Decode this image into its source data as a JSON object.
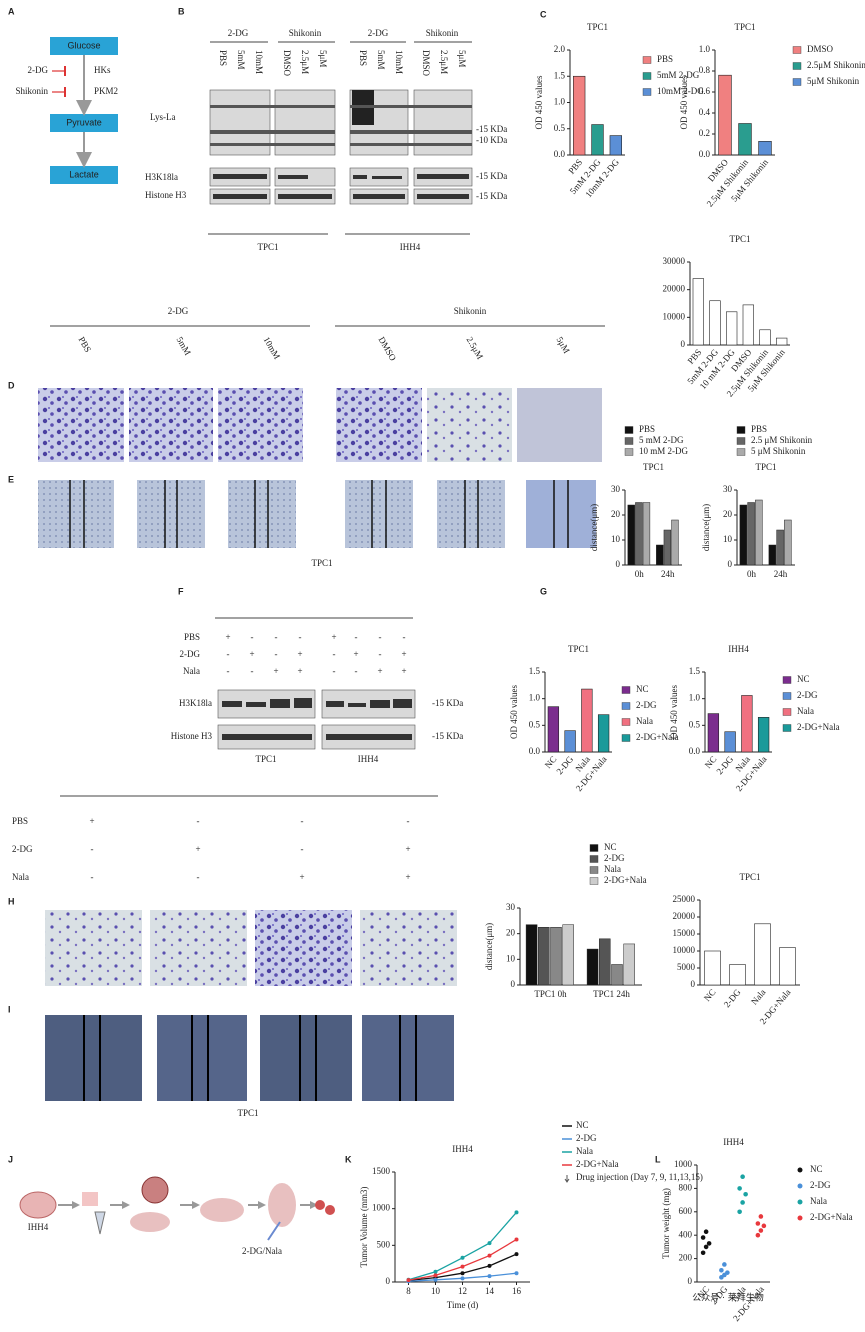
{
  "panel_letters": [
    "A",
    "B",
    "C",
    "D",
    "E",
    "F",
    "G",
    "H",
    "I",
    "J",
    "K",
    "L"
  ],
  "pathway": {
    "nodes": [
      "Glucose",
      "Pyruvate",
      "Lactate"
    ],
    "inhibitors": [
      "2-DG",
      "Shikonin"
    ],
    "enzymes": [
      "HKs",
      "PKM2"
    ]
  },
  "blot_b": {
    "groups": [
      "2-DG",
      "Shikonin"
    ],
    "lanes": [
      "PBS",
      "5mM",
      "10mM",
      "DMSO",
      "2.5μM",
      "5μM"
    ],
    "rows": [
      "Lys-La",
      "H3K18la",
      "Histone H3"
    ],
    "sizes": [
      "-15 KDa",
      "-10 KDa",
      "-15 KDa",
      "-15 KDa"
    ],
    "cells": [
      "TPC1",
      "IHH4"
    ]
  },
  "panel_d": {
    "groups": [
      "2-DG",
      "Shikonin"
    ],
    "lanes": [
      "PBS",
      "5mM",
      "10mM",
      "DMSO",
      "2.5μM",
      "5μM"
    ],
    "caption": "TPC1"
  },
  "blot_f": {
    "rows": [
      "PBS",
      "2-DG",
      "Nala"
    ],
    "signs": [
      [
        "+",
        "-",
        "-",
        "-",
        "+",
        "-",
        "-",
        "-"
      ],
      [
        "-",
        "+",
        "-",
        "+",
        "-",
        "+",
        "-",
        "+"
      ],
      [
        "-",
        "-",
        "+",
        "+",
        "-",
        "-",
        "+",
        "+"
      ]
    ],
    "bands": [
      "H3K18la",
      "Histone H3"
    ],
    "sizes": [
      "-15 KDa",
      "-15 KDa"
    ],
    "cells": [
      "TPC1",
      "IHH4"
    ]
  },
  "panel_h": {
    "rows": [
      "PBS",
      "2-DG",
      "Nala"
    ],
    "signs": [
      [
        "+",
        "-",
        "-",
        "-"
      ],
      [
        "-",
        "+",
        "-",
        "+"
      ],
      [
        "-",
        "-",
        "+",
        "+"
      ]
    ],
    "caption": "TPC1"
  },
  "panel_j": {
    "labels": [
      "IHH4",
      "2-DG/Nala"
    ]
  },
  "watermark": "公众号 · 莱拜生物",
  "charts": [
    {
      "type": "bar",
      "title": "TPC1",
      "ylabel": "OD 450 values",
      "categories": [
        "PBS",
        "5mM 2-DG",
        "10mM 2-DG"
      ],
      "values": [
        1.5,
        0.58,
        0.37
      ],
      "colors": [
        "#f08080",
        "#2a9d8f",
        "#5b8fd6"
      ],
      "ylim": [
        0,
        2
      ],
      "yticks": [
        {
          "value": 0,
          "label": "0.0"
        },
        0.5,
        {
          "value": 1,
          "label": "1.0"
        },
        1.5,
        {
          "value": 2,
          "label": "2.0"
        }
      ],
      "legend": "right"
    },
    {
      "type": "bar",
      "title": "TPC1",
      "ylabel": "OD 450 values",
      "categories": [
        "DMSO",
        "2.5μM Shikonin",
        "5μM Shikonin"
      ],
      "values": [
        0.76,
        0.3,
        0.13
      ],
      "colors": [
        "#f08080",
        "#2a9d8f",
        "#5b8fd6"
      ],
      "ylim": [
        0,
        1
      ],
      "yticks": [
        {
          "value": 0,
          "label": "0.0"
        },
        0.2,
        0.4,
        0.6,
        0.8,
        {
          "value": 1,
          "label": "1.0"
        }
      ],
      "legend": "right"
    },
    {
      "type": "bar",
      "title": "TPC1",
      "categories": [
        "PBS",
        "5mM 2-DG",
        "10 mM 2-DG",
        "DMSO",
        "2.5μM Shikonin",
        "5μM Shikonin"
      ],
      "values": [
        24000,
        16000,
        12000,
        14500,
        5500,
        2500
      ],
      "colors": [
        "#ffffff",
        "#ffffff",
        "#ffffff",
        "#ffffff",
        "#ffffff",
        "#ffffff"
      ],
      "ylim": [
        0,
        30000
      ],
      "yticks": [
        0,
        10000,
        20000,
        30000
      ]
    },
    {
      "type": "grouped_bar",
      "title": "TPC1",
      "ylabel": "distance(μm)",
      "categories": [
        "0h",
        "24h"
      ],
      "series": [
        {
          "name": "PBS",
          "color": "#111111",
          "values": [
            24,
            8
          ]
        },
        {
          "name": "5 mM 2-DG",
          "color": "#666666",
          "values": [
            25,
            14
          ]
        },
        {
          "name": "10 mM 2-DG",
          "color": "#aaaaaa",
          "values": [
            25,
            18
          ]
        }
      ],
      "ylim": [
        0,
        30
      ],
      "yticks": [
        0,
        10,
        20,
        30
      ],
      "legend": "top"
    },
    {
      "type": "grouped_bar",
      "title": "TPC1",
      "ylabel": "distance(μm)",
      "categories": [
        "0h",
        "24h"
      ],
      "series": [
        {
          "name": "PBS",
          "color": "#111111",
          "values": [
            24,
            8
          ]
        },
        {
          "name": "2.5 μM Shikonin",
          "color": "#666666",
          "values": [
            25,
            14
          ]
        },
        {
          "name": "5 μM Shikonin",
          "color": "#aaaaaa",
          "values": [
            26,
            18
          ]
        }
      ],
      "ylim": [
        0,
        30
      ],
      "yticks": [
        0,
        10,
        20,
        30
      ],
      "legend": "top"
    },
    {
      "type": "bar",
      "title": "TPC1",
      "ylabel": "OD 450 values",
      "categories": [
        "NC",
        "2-DG",
        "Nala",
        "2-DG+Nala"
      ],
      "values": [
        0.85,
        0.4,
        1.18,
        0.7
      ],
      "colors": [
        "#7b2d8e",
        "#5b8fd6",
        "#f07080",
        "#1a9a9a"
      ],
      "ylim": [
        0,
        1.5
      ],
      "yticks": [
        {
          "value": 0,
          "label": "0.0"
        },
        0.5,
        {
          "value": 1,
          "label": "1.0"
        },
        1.5
      ],
      "legend": "right"
    },
    {
      "type": "bar",
      "title": "IHH4",
      "ylabel": "OD 450 values",
      "categories": [
        "NC",
        "2-DG",
        "Nala",
        "2-DG+Nala"
      ],
      "values": [
        0.72,
        0.38,
        1.06,
        0.65
      ],
      "colors": [
        "#7b2d8e",
        "#5b8fd6",
        "#f07080",
        "#1a9a9a"
      ],
      "ylim": [
        0,
        1.5
      ],
      "yticks": [
        {
          "value": 0,
          "label": "0.0"
        },
        0.5,
        {
          "value": 1,
          "label": "1.0"
        },
        1.5
      ],
      "legend": "right"
    },
    {
      "type": "grouped_bar",
      "ylabel": "distance(μm)",
      "categories": [
        "TPC1 0h",
        "TPC1 24h"
      ],
      "series": [
        {
          "name": "NC",
          "color": "#111111",
          "values": [
            23.5,
            14
          ]
        },
        {
          "name": "2-DG",
          "color": "#555555",
          "values": [
            22.5,
            18
          ]
        },
        {
          "name": "Nala",
          "color": "#888888",
          "values": [
            22.5,
            8
          ]
        },
        {
          "name": "2-DG+Nala",
          "color": "#cccccc",
          "values": [
            23.5,
            16
          ]
        }
      ],
      "ylim": [
        0,
        30
      ],
      "yticks": [
        0,
        10,
        20,
        30
      ],
      "legend": "top"
    },
    {
      "type": "bar",
      "title": "TPC1",
      "categories": [
        "NC",
        "2-DG",
        "Nala",
        "2-DG+Nala"
      ],
      "values": [
        10000,
        6000,
        18000,
        11000
      ],
      "colors": [
        "#ffffff",
        "#ffffff",
        "#ffffff",
        "#ffffff"
      ],
      "ylim": [
        0,
        25000
      ],
      "yticks": [
        0,
        5000,
        10000,
        15000,
        20000,
        25000
      ]
    },
    {
      "type": "line",
      "title": "IHH4",
      "xlabel": "Time (d)",
      "ylabel": "Tumor Volume (mm3)",
      "x": [
        8,
        10,
        12,
        14,
        16
      ],
      "xlim": [
        7,
        17
      ],
      "xticks": [
        8,
        10,
        12,
        14,
        16
      ],
      "series": [
        {
          "name": "NC",
          "color": "#111111",
          "values": [
            20,
            60,
            120,
            220,
            380
          ]
        },
        {
          "name": "2-DG",
          "color": "#4a90d9",
          "values": [
            10,
            30,
            50,
            80,
            120
          ]
        },
        {
          "name": "Nala",
          "color": "#1aa3a3",
          "values": [
            30,
            140,
            330,
            530,
            950
          ]
        },
        {
          "name": "2-DG+Nala",
          "color": "#e8383d",
          "values": [
            25,
            90,
            210,
            360,
            580
          ]
        }
      ],
      "ylim": [
        0,
        1500
      ],
      "yticks": [
        0,
        500,
        1000,
        1500
      ],
      "note": "Drug injection (Day 7, 9, 11,13,15)",
      "legend": "right"
    },
    {
      "type": "strip",
      "title": "IHH4",
      "ylabel": "Tumor weight (mg)",
      "categories": [
        "NC",
        "2-DG",
        "Nala",
        "2-DG+Nala"
      ],
      "points": [
        [
          250,
          300,
          330,
          380,
          430
        ],
        [
          40,
          60,
          80,
          100,
          150
        ],
        [
          600,
          680,
          750,
          800,
          900
        ],
        [
          400,
          440,
          480,
          500,
          560
        ]
      ],
      "colors": [
        "#111111",
        "#4a90d9",
        "#1aa3a3",
        "#e8383d"
      ],
      "ylim": [
        0,
        1000
      ],
      "yticks": [
        0,
        200,
        400,
        600,
        800,
        1000
      ],
      "legend": "right"
    }
  ]
}
